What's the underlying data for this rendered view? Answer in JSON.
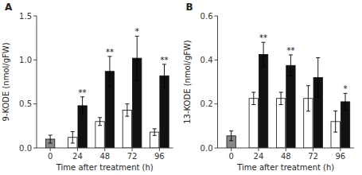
{
  "chart_data": [
    {
      "type": "bar",
      "title": "A",
      "xlabel": "Time after treatment (h)",
      "ylabel": "9-KODE (nmol/gFW)",
      "categories": [
        "0",
        "24",
        "48",
        "72",
        "96"
      ],
      "series": [
        {
          "color": "#888888",
          "values": [
            0.1,
            null,
            null,
            null,
            null
          ],
          "errors": [
            0.045,
            null,
            null,
            null,
            null
          ]
        },
        {
          "color": "#ffffff",
          "values": [
            null,
            0.12,
            0.3,
            0.43,
            0.18
          ],
          "errors": [
            null,
            0.065,
            0.045,
            0.07,
            0.038
          ]
        },
        {
          "color": "#111111",
          "values": [
            null,
            0.48,
            0.87,
            1.02,
            0.82
          ],
          "errors": [
            null,
            0.1,
            0.17,
            0.25,
            0.13
          ],
          "annotations": [
            null,
            "**",
            "**",
            "*",
            "**"
          ]
        }
      ],
      "ylim": [
        0,
        1.5
      ],
      "yticks": [
        {
          "value": 0.0,
          "label": "0.0"
        },
        0.5,
        {
          "value": 1.0,
          "label": "1.0"
        },
        1.5
      ],
      "grid": false
    },
    {
      "type": "bar",
      "title": "B",
      "xlabel": "Time after treatment (h)",
      "ylabel": "13-KODE (nmol/gFW)",
      "categories": [
        "0",
        "24",
        "48",
        "72",
        "96"
      ],
      "series": [
        {
          "color": "#888888",
          "values": [
            0.055,
            null,
            null,
            null,
            null
          ],
          "errors": [
            0.022,
            null,
            null,
            null,
            null
          ]
        },
        {
          "color": "#ffffff",
          "values": [
            null,
            0.225,
            0.225,
            0.225,
            0.12
          ],
          "errors": [
            null,
            0.028,
            0.028,
            0.058,
            0.048
          ]
        },
        {
          "color": "#111111",
          "values": [
            null,
            0.425,
            0.375,
            0.32,
            0.21
          ],
          "errors": [
            null,
            0.055,
            0.048,
            0.09,
            0.038
          ],
          "annotations": [
            null,
            "**",
            "**",
            null,
            "*"
          ]
        }
      ],
      "ylim": [
        0,
        0.6
      ],
      "yticks": [
        {
          "value": 0.0,
          "label": "0.0"
        },
        0.2,
        0.4,
        0.6
      ],
      "grid": false
    }
  ]
}
